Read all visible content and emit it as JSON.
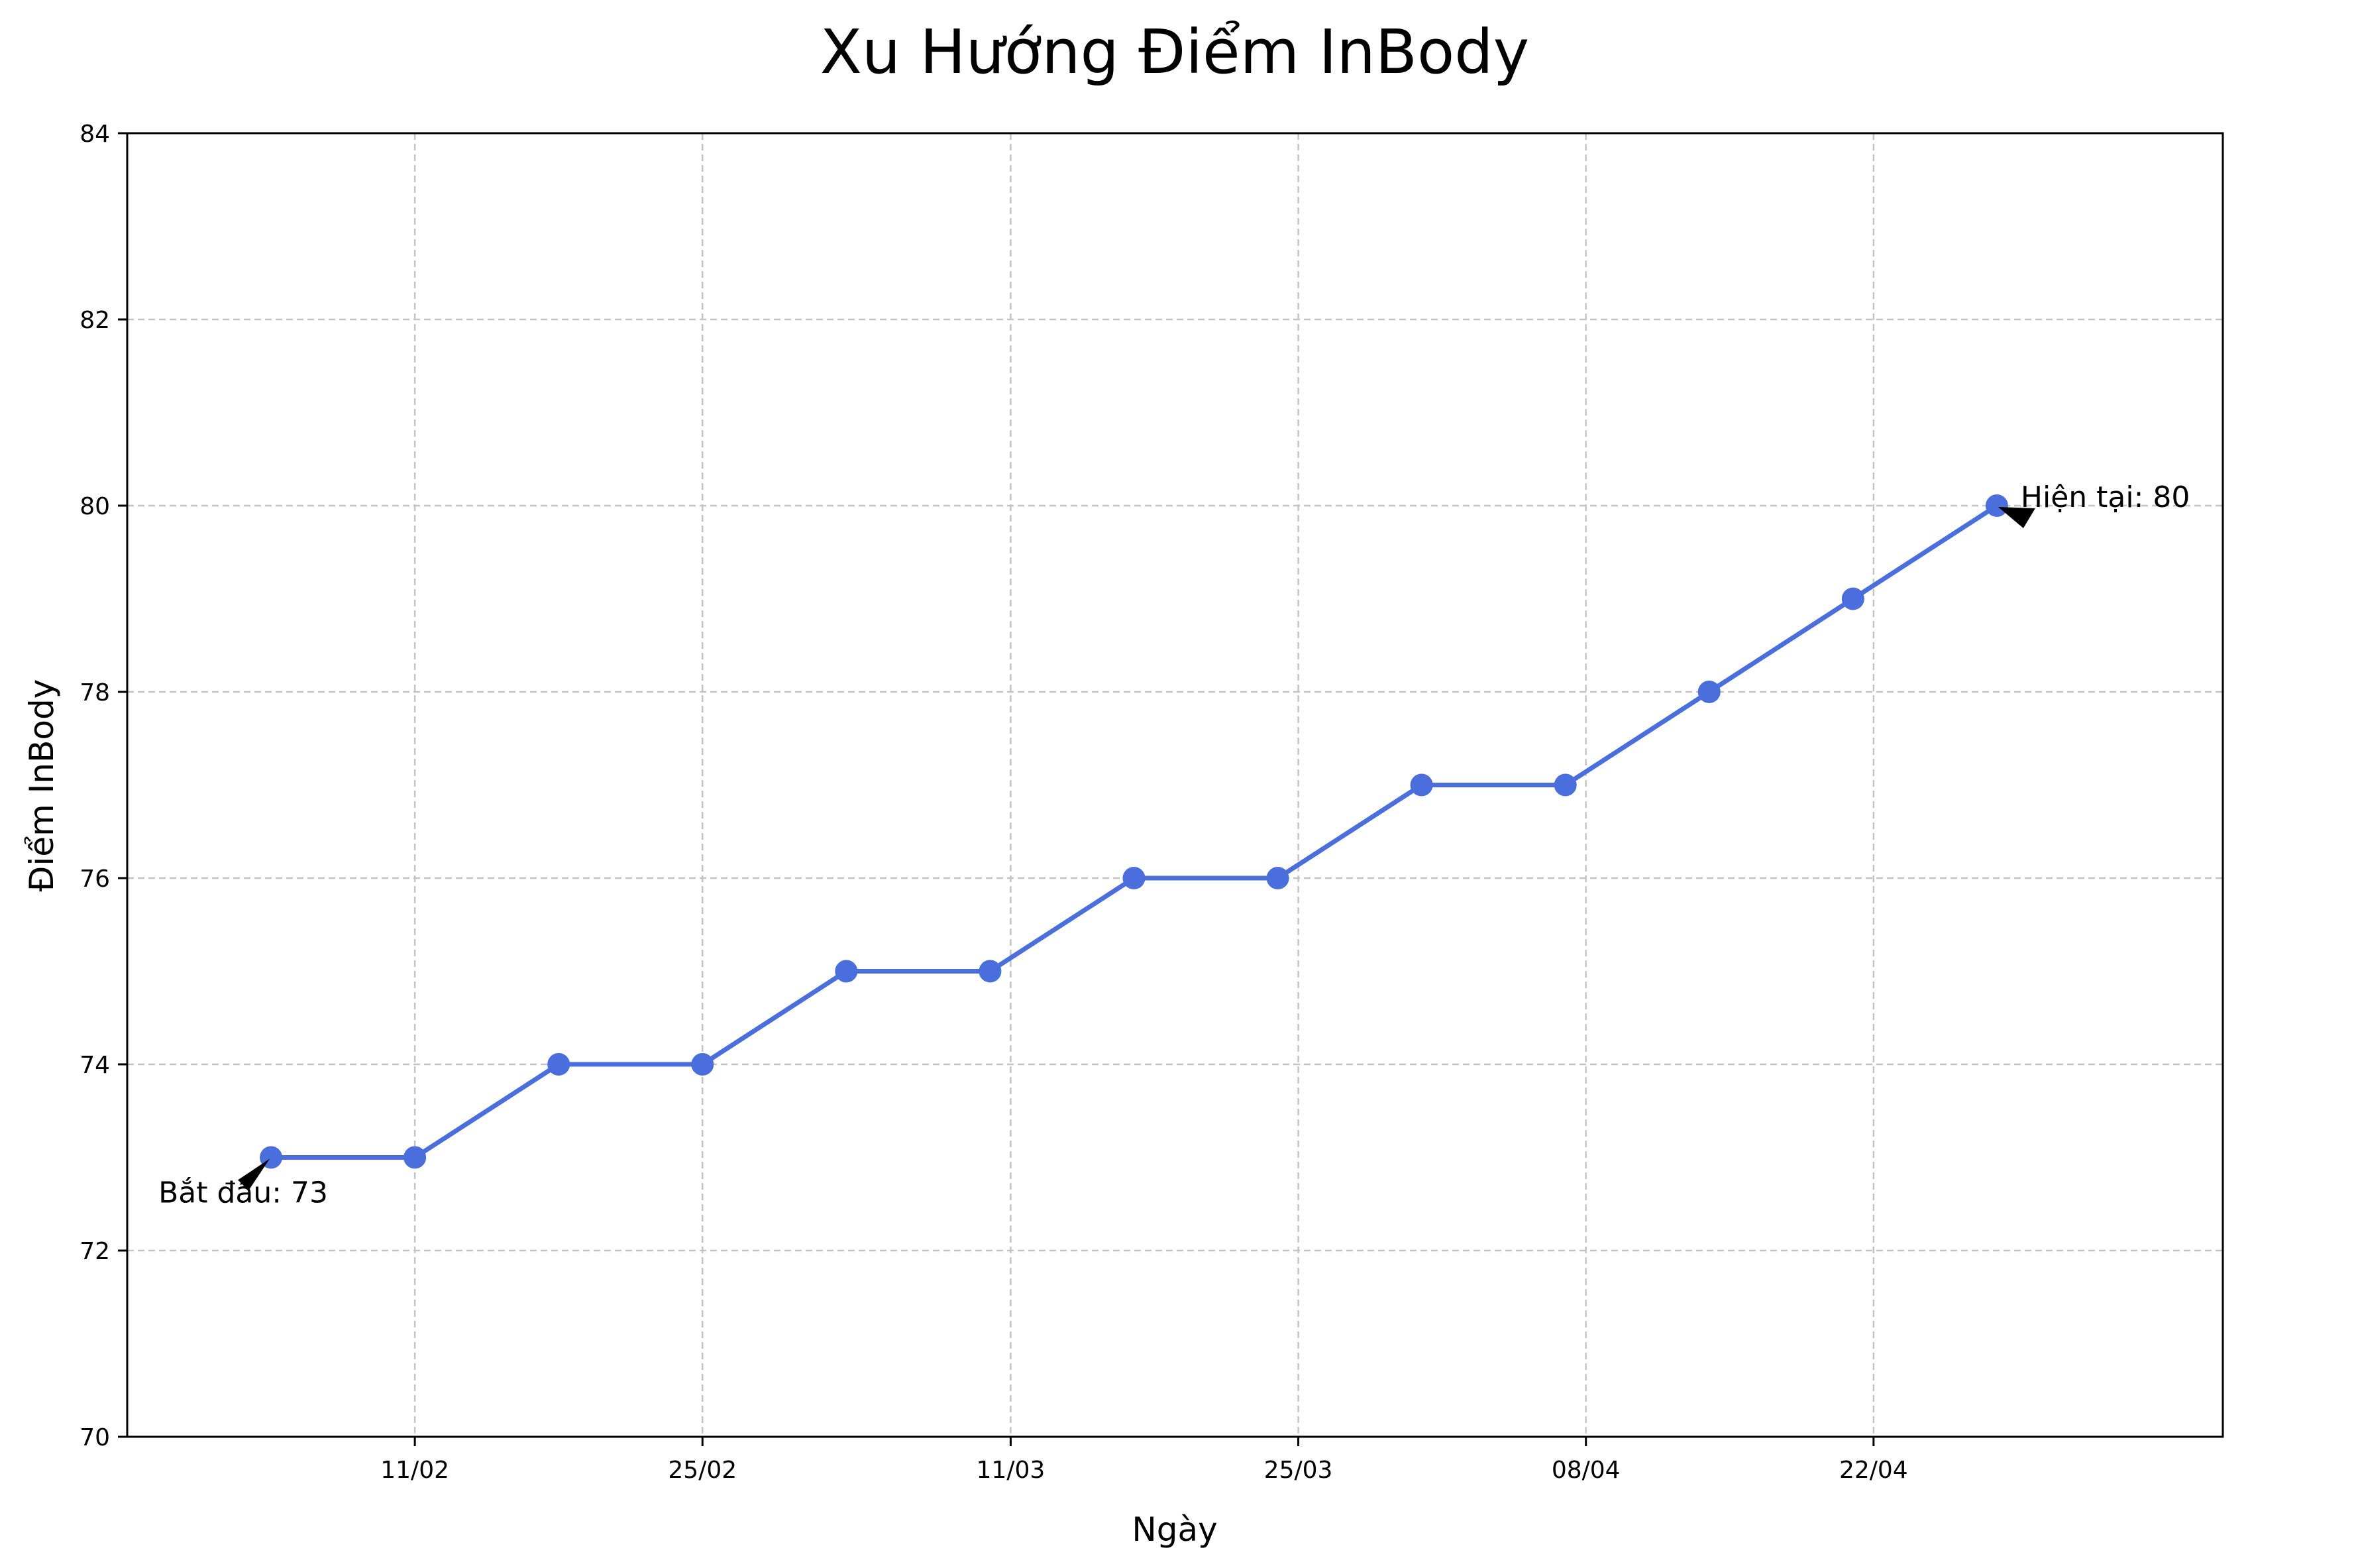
{
  "chart_data": {
    "type": "line",
    "title": "Xu Hướng Điểm InBody",
    "xlabel": "Ngày",
    "ylabel": "Điểm InBody",
    "ylim": [
      70,
      84
    ],
    "yticks": [
      70,
      72,
      74,
      76,
      78,
      80,
      82,
      84
    ],
    "xticks": [
      {
        "label": "11/02",
        "date": "2024-02-11"
      },
      {
        "label": "25/02",
        "date": "2024-02-25"
      },
      {
        "label": "11/03",
        "date": "2024-03-11"
      },
      {
        "label": "25/03",
        "date": "2024-03-25"
      },
      {
        "label": "08/04",
        "date": "2024-04-08"
      },
      {
        "label": "22/04",
        "date": "2024-04-22"
      }
    ],
    "xlim": [
      "2024-01-28",
      "2024-05-09"
    ],
    "grid": true,
    "color": "#4A6FDC",
    "series": [
      {
        "name": "",
        "points": [
          {
            "x": "2024-02-04",
            "y": 73
          },
          {
            "x": "2024-02-11",
            "y": 73
          },
          {
            "x": "2024-02-18",
            "y": 74
          },
          {
            "x": "2024-02-25",
            "y": 74
          },
          {
            "x": "2024-03-03",
            "y": 75
          },
          {
            "x": "2024-03-10",
            "y": 75
          },
          {
            "x": "2024-03-17",
            "y": 76
          },
          {
            "x": "2024-03-24",
            "y": 76
          },
          {
            "x": "2024-03-31",
            "y": 77
          },
          {
            "x": "2024-04-07",
            "y": 77
          },
          {
            "x": "2024-04-14",
            "y": 78
          },
          {
            "x": "2024-04-21",
            "y": 79
          },
          {
            "x": "2024-04-28",
            "y": 80
          }
        ]
      }
    ],
    "annotations": [
      {
        "text": "Bắt đầu: 73",
        "x": "2024-02-04",
        "y": 73,
        "placement": "below-left"
      },
      {
        "text": "Hiện tại: 80",
        "x": "2024-04-28",
        "y": 80,
        "placement": "right"
      }
    ]
  }
}
